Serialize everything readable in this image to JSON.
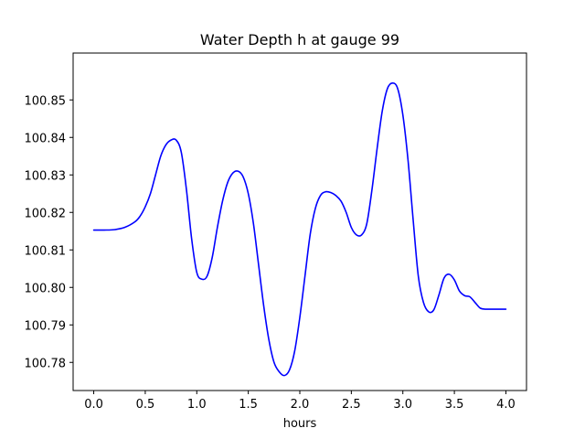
{
  "chart_data": {
    "type": "line",
    "title": "Water Depth h at gauge 99",
    "xlabel": "hours",
    "ylabel": "",
    "xlim": [
      -0.2,
      4.2
    ],
    "ylim": [
      100.7725,
      100.8625
    ],
    "xticks": [
      0.0,
      0.5,
      1.0,
      1.5,
      2.0,
      2.5,
      3.0,
      3.5,
      4.0
    ],
    "xtick_labels": [
      "0.0",
      "0.5",
      "1.0",
      "1.5",
      "2.0",
      "2.5",
      "3.0",
      "3.5",
      "4.0"
    ],
    "yticks": [
      100.78,
      100.79,
      100.8,
      100.81,
      100.82,
      100.83,
      100.84,
      100.85
    ],
    "ytick_labels": [
      "100.78",
      "100.79",
      "100.80",
      "100.81",
      "100.82",
      "100.83",
      "100.84",
      "100.85"
    ],
    "grid": false,
    "series": [
      {
        "color": "#0000ff",
        "x": [
          0.0,
          0.1,
          0.2,
          0.3,
          0.4,
          0.45,
          0.5,
          0.55,
          0.6,
          0.65,
          0.7,
          0.75,
          0.8,
          0.85,
          0.9,
          0.95,
          1.0,
          1.05,
          1.1,
          1.15,
          1.2,
          1.25,
          1.3,
          1.35,
          1.4,
          1.45,
          1.5,
          1.55,
          1.6,
          1.65,
          1.7,
          1.75,
          1.8,
          1.85,
          1.9,
          1.95,
          2.0,
          2.05,
          2.1,
          2.15,
          2.2,
          2.25,
          2.3,
          2.35,
          2.4,
          2.45,
          2.5,
          2.55,
          2.6,
          2.65,
          2.7,
          2.75,
          2.8,
          2.85,
          2.9,
          2.95,
          3.0,
          3.05,
          3.1,
          3.15,
          3.2,
          3.25,
          3.3,
          3.35,
          3.4,
          3.45,
          3.5,
          3.55,
          3.6,
          3.65,
          3.7,
          3.75,
          3.8,
          3.85,
          3.9,
          3.95,
          4.0
        ],
        "values": [
          100.8153,
          100.8153,
          100.8154,
          100.816,
          100.8175,
          100.819,
          100.8215,
          100.825,
          100.83,
          100.835,
          100.838,
          100.8393,
          100.8393,
          100.836,
          100.826,
          100.813,
          100.804,
          100.8022,
          100.803,
          100.808,
          100.816,
          100.823,
          100.828,
          100.8305,
          100.831,
          100.8295,
          100.825,
          100.817,
          100.806,
          100.795,
          100.786,
          100.78,
          100.7775,
          100.7765,
          100.778,
          100.783,
          100.792,
          100.803,
          100.814,
          100.821,
          100.8245,
          100.8255,
          100.8253,
          100.8245,
          100.823,
          100.82,
          100.816,
          100.814,
          100.814,
          100.817,
          100.826,
          100.837,
          100.847,
          100.853,
          100.8545,
          100.853,
          100.846,
          100.834,
          100.818,
          100.803,
          100.796,
          100.7935,
          100.794,
          100.798,
          100.8025,
          100.8035,
          100.802,
          100.799,
          100.7978,
          100.7975,
          100.796,
          100.7945,
          100.7942,
          100.7942,
          100.7942,
          100.7942,
          100.7942
        ]
      }
    ]
  }
}
